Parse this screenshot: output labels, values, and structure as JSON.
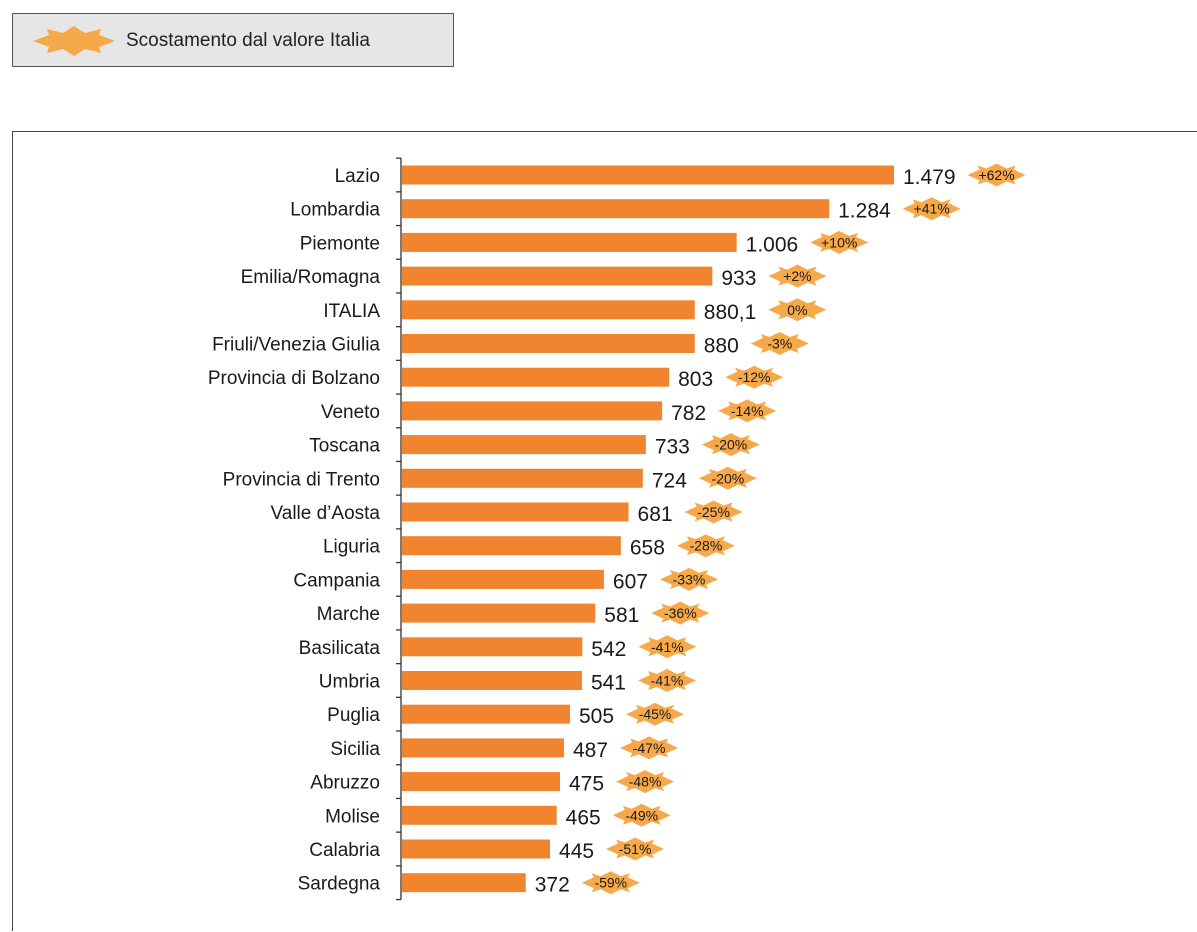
{
  "legend": {
    "label": "Scostamento dal valore Italia"
  },
  "colors": {
    "bar": "#f0842f",
    "star": "#f6a94a",
    "star_stroke": "#f49a3a"
  },
  "chart_data": {
    "type": "bar",
    "orientation": "horizontal",
    "title": "",
    "xlabel": "",
    "ylabel": "",
    "xlim": [
      0,
      1479
    ],
    "grid": false,
    "legend_position": "top-left",
    "categories": [
      "Lazio",
      "Lombardia",
      "Piemonte",
      "Emilia/Romagna",
      "ITALIA",
      "Friuli/Venezia Giulia",
      "Provincia di Bolzano",
      "Veneto",
      "Toscana",
      "Provincia di Trento",
      "Valle d’Aosta",
      "Liguria",
      "Campania",
      "Marche",
      "Basilicata",
      "Umbria",
      "Puglia",
      "Sicilia",
      "Abruzzo",
      "Molise",
      "Calabria",
      "Sardegna"
    ],
    "values": [
      1479,
      1284,
      1006,
      933,
      880.1,
      880,
      803,
      782,
      733,
      724,
      681,
      658,
      607,
      581,
      542,
      541,
      505,
      487,
      475,
      465,
      445,
      372
    ],
    "value_labels": [
      "1.479",
      "1.284",
      "1.006",
      "933",
      "880,1",
      "880",
      "803",
      "782",
      "733",
      "724",
      "681",
      "658",
      "607",
      "581",
      "542",
      "541",
      "505",
      "487",
      "475",
      "465",
      "445",
      "372"
    ],
    "deviation_labels": [
      "+62%",
      "+41%",
      "+10%",
      "+2%",
      "0%",
      "-3%",
      "-12%",
      "-14%",
      "-20%",
      "-20%",
      "-25%",
      "-28%",
      "-33%",
      "-36%",
      "-41%",
      "-41%",
      "-45%",
      "-47%",
      "-48%",
      "-49%",
      "-51%",
      "-59%"
    ],
    "deviation_series_name": "Scostamento dal valore Italia"
  }
}
